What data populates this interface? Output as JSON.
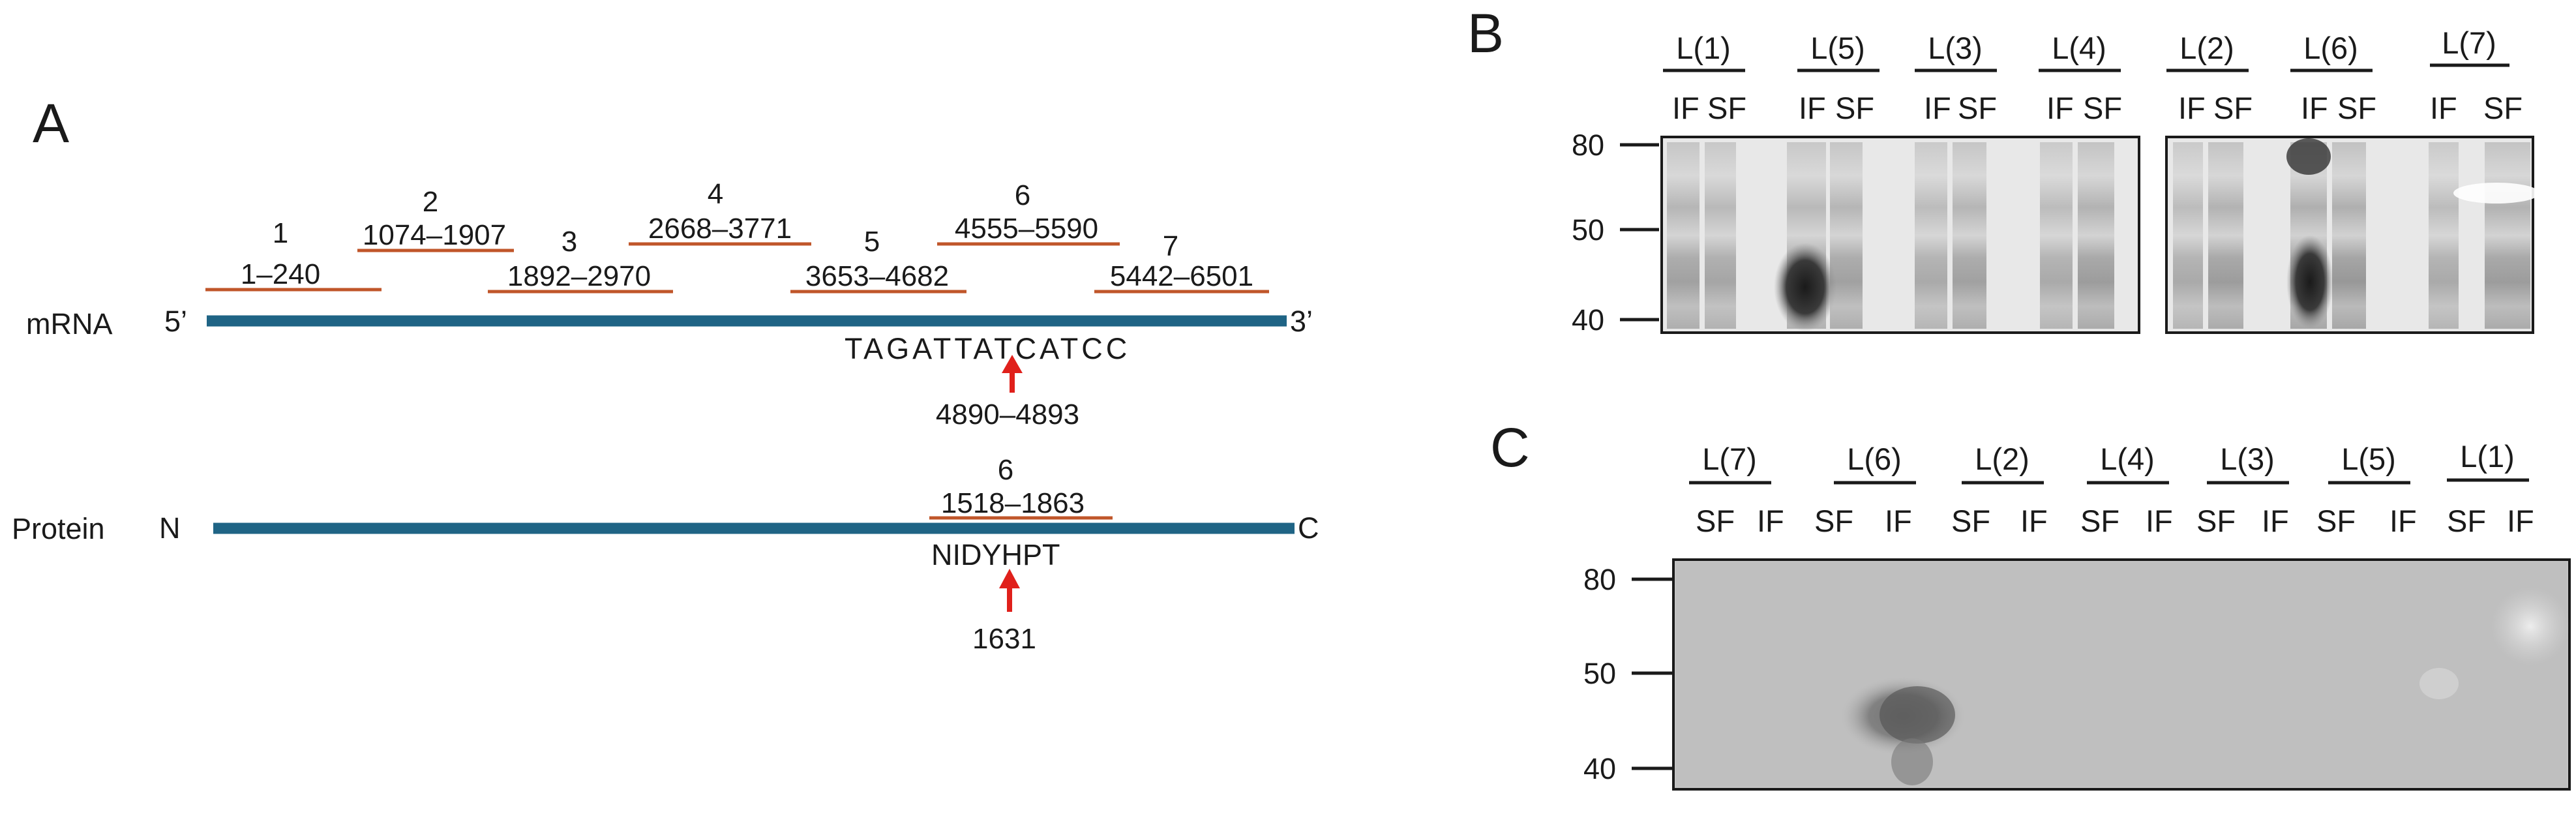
{
  "panels": {
    "a": "A",
    "b": "B",
    "c": "C"
  },
  "diagram": {
    "mrna": {
      "label": "mRNA",
      "five_prime": "5’",
      "three_prime": "3’",
      "sequence": "TAGATTATCATCC",
      "site": "4890–4893"
    },
    "protein": {
      "label": "Protein",
      "n_term": "N",
      "c_term": "C",
      "sequence": "NIDYHPT",
      "site": "1631"
    },
    "fragments": [
      {
        "num": "1",
        "range": "1–240"
      },
      {
        "num": "2",
        "range": "1074–1907"
      },
      {
        "num": "3",
        "range": "1892–2970"
      },
      {
        "num": "4",
        "range": "2668–3771"
      },
      {
        "num": "5",
        "range": "3653–4682"
      },
      {
        "num": "6",
        "range": "4555–5590"
      },
      {
        "num": "7",
        "range": "5442–6501"
      }
    ],
    "protein_fragment": {
      "num": "6",
      "range": "1518–1863"
    },
    "colors": {
      "backbone": "#1f6485",
      "fragment": "#c0562a",
      "arrow": "#e0201b"
    }
  },
  "blot_b": {
    "lanes": [
      "L(1)",
      "L(5)",
      "L(3)",
      "L(4)",
      "L(2)",
      "L(6)",
      "L(7)"
    ],
    "fractions": [
      "IF",
      "SF"
    ],
    "markers": [
      "80",
      "50",
      "40"
    ]
  },
  "blot_c": {
    "lanes": [
      "L(7)",
      "L(6)",
      "L(2)",
      "L(4)",
      "L(3)",
      "L(5)",
      "L(1)"
    ],
    "fractions": [
      "SF",
      "IF"
    ],
    "markers": [
      "80",
      "50",
      "40"
    ]
  }
}
